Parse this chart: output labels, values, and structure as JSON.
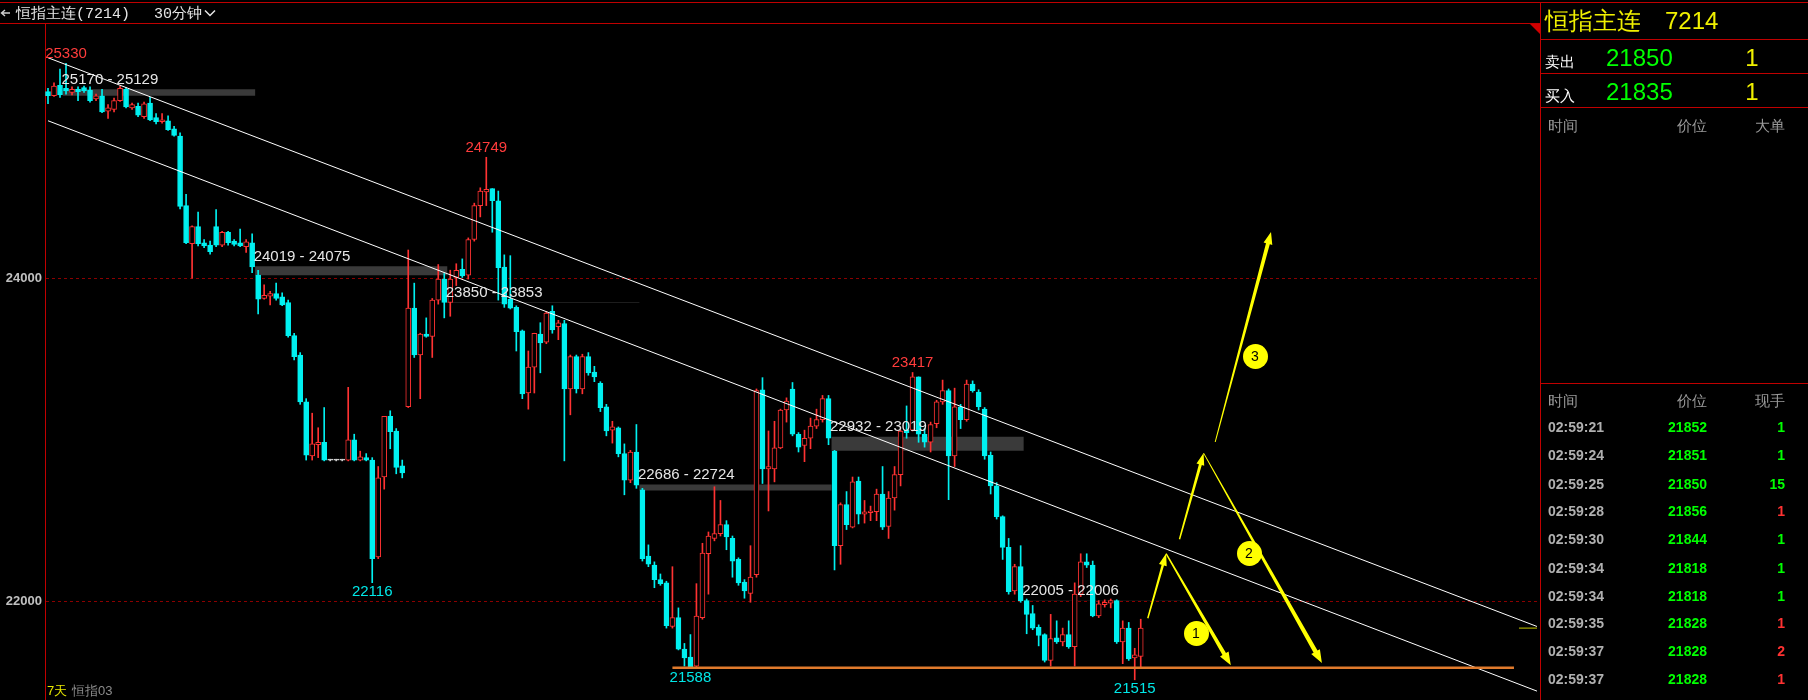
{
  "chart_data": {
    "type": "candlestick",
    "title": "恒指主连(7214)",
    "subtitle": "30分钟",
    "categories": [
      null,
      null,
      null,
      null,
      null,
      null,
      null,
      null,
      null,
      null,
      null,
      null,
      null,
      null,
      null,
      null,
      null,
      null,
      null,
      null,
      null,
      null,
      null,
      null,
      null,
      null,
      null,
      null,
      null,
      null,
      null,
      null,
      null,
      null,
      null,
      null,
      null,
      null,
      null,
      null,
      null,
      null,
      null,
      null,
      null,
      null,
      null,
      null,
      null,
      null,
      null,
      null,
      null,
      null,
      null,
      null,
      null,
      null,
      null,
      null,
      null,
      null,
      null,
      null,
      null,
      null,
      null,
      null,
      null,
      null,
      null,
      null,
      null,
      null,
      null,
      null,
      null,
      null,
      null,
      null,
      null,
      null,
      null,
      null,
      null,
      null,
      null,
      null,
      null,
      null,
      null,
      null,
      null,
      null,
      null,
      null,
      null,
      null,
      null,
      null,
      null,
      null,
      null,
      null,
      null,
      null,
      null,
      null,
      null,
      null,
      null,
      null,
      null,
      null,
      null,
      null,
      null,
      null,
      null,
      null,
      null,
      null,
      null,
      null,
      null,
      null,
      null,
      null,
      null,
      null,
      null,
      null,
      null,
      null,
      null,
      null,
      null,
      null,
      null,
      null,
      null,
      null,
      null,
      null,
      null,
      null,
      null,
      null,
      null,
      null,
      null,
      null,
      null,
      null,
      null,
      null,
      null,
      null,
      null,
      null,
      null,
      null,
      null,
      null,
      null,
      null,
      null,
      null,
      null,
      null,
      null,
      null,
      null,
      null,
      null,
      null,
      null,
      null,
      null,
      null,
      null,
      null,
      null,
      null,
      null,
      null,
      null,
      null,
      null,
      null,
      null,
      null,
      null,
      null,
      null,
      null,
      null,
      null,
      null,
      null,
      null,
      null,
      null,
      null,
      null,
      null,
      null,
      null,
      null,
      null,
      null,
      null,
      null,
      null,
      null,
      null,
      null,
      null,
      null,
      null,
      null,
      null,
      null,
      null,
      null,
      null,
      null,
      null,
      null,
      null,
      null,
      null,
      null,
      null,
      null,
      null,
      null,
      null,
      null,
      null,
      null,
      null,
      null,
      null,
      null,
      null,
      null,
      null,
      null
    ],
    "ohlc": [
      [
        25155,
        25175,
        25080,
        25130
      ],
      [
        25130,
        25210,
        25125,
        25190
      ],
      [
        25195,
        25295,
        25120,
        25135
      ],
      [
        25175,
        25330,
        25140,
        25160
      ],
      [
        25150,
        25185,
        25135,
        25170
      ],
      [
        25170,
        25185,
        25100,
        25155
      ],
      [
        25180,
        25190,
        25150,
        25160
      ],
      [
        25165,
        25185,
        25090,
        25100
      ],
      [
        25110,
        25140,
        25100,
        25130
      ],
      [
        25130,
        25170,
        25025,
        25030
      ],
      [
        25035,
        25075,
        24990,
        25055
      ],
      [
        25045,
        25115,
        25030,
        25100
      ],
      [
        25100,
        25190,
        25095,
        25175
      ],
      [
        25170,
        25180,
        25055,
        25060
      ],
      [
        25055,
        25085,
        25045,
        25075
      ],
      [
        25065,
        25085,
        25000,
        25010
      ],
      [
        25000,
        25090,
        24990,
        25080
      ],
      [
        25085,
        25120,
        24975,
        24980
      ],
      [
        24995,
        25020,
        24955,
        24970
      ],
      [
        24970,
        25020,
        24960,
        24980
      ],
      [
        24975,
        25005,
        24915,
        24920
      ],
      [
        24925,
        24940,
        24880,
        24885
      ],
      [
        24880,
        24900,
        24430,
        24445
      ],
      [
        24450,
        24520,
        24215,
        24220
      ],
      [
        24215,
        24325,
        24000,
        24320
      ],
      [
        24320,
        24410,
        24200,
        24215
      ],
      [
        24220,
        24240,
        24190,
        24200
      ],
      [
        24205,
        24230,
        24150,
        24165
      ],
      [
        24320,
        24425,
        24195,
        24205
      ],
      [
        24205,
        24290,
        24195,
        24285
      ],
      [
        24285,
        24290,
        24205,
        24220
      ],
      [
        24230,
        24240,
        24200,
        24210
      ],
      [
        24220,
        24305,
        24195,
        24200
      ],
      [
        24195,
        24240,
        24160,
        24225
      ],
      [
        24220,
        24275,
        24035,
        24070
      ],
      [
        24020,
        24050,
        23780,
        23870
      ],
      [
        23875,
        23960,
        23870,
        23895
      ],
      [
        23890,
        23920,
        23835,
        23905
      ],
      [
        23905,
        23970,
        23865,
        23875
      ],
      [
        23885,
        23910,
        23830,
        23835
      ],
      [
        23850,
        23865,
        23635,
        23645
      ],
      [
        23645,
        23660,
        23495,
        23515
      ],
      [
        23525,
        23540,
        23220,
        23235
      ],
      [
        23235,
        23255,
        22875,
        22905
      ],
      [
        22900,
        23165,
        22875,
        22975
      ],
      [
        22970,
        23075,
        22890,
        22985
      ],
      [
        22985,
        23200,
        22870,
        22875
      ],
      [
        22875,
        22880,
        22870,
        22875
      ],
      [
        22875,
        22880,
        22870,
        22875
      ],
      [
        22875,
        22880,
        22870,
        22875
      ],
      [
        22875,
        23325,
        22870,
        23000
      ],
      [
        23000,
        23035,
        22870,
        22875
      ],
      [
        22875,
        22930,
        22870,
        22895
      ],
      [
        22890,
        22915,
        22870,
        22875
      ],
      [
        22875,
        22890,
        22116,
        22265
      ],
      [
        22275,
        22835,
        22265,
        22765
      ],
      [
        22770,
        23145,
        22695,
        23145
      ],
      [
        23145,
        23180,
        22945,
        23050
      ],
      [
        23055,
        23070,
        22790,
        22830
      ],
      [
        22840,
        22875,
        22765,
        22795
      ],
      [
        23205,
        24175,
        23200,
        23815
      ],
      [
        23815,
        23970,
        23510,
        23525
      ],
      [
        23525,
        23660,
        23255,
        23655
      ],
      [
        23655,
        23755,
        23635,
        23640
      ],
      [
        23640,
        23875,
        23510,
        23865
      ],
      [
        23865,
        24085,
        23840,
        23995
      ],
      [
        23995,
        24030,
        23755,
        23850
      ],
      [
        23850,
        24050,
        23765,
        23995
      ],
      [
        24005,
        24090,
        23955,
        24050
      ],
      [
        24055,
        24120,
        24005,
        24015
      ],
      [
        24020,
        24250,
        23995,
        24240
      ],
      [
        24240,
        24465,
        24230,
        24450
      ],
      [
        24450,
        24560,
        24380,
        24540
      ],
      [
        24535,
        24749,
        24450,
        24550
      ],
      [
        24555,
        24555,
        24285,
        24480
      ],
      [
        24480,
        24540,
        23865,
        24065
      ],
      [
        24070,
        24145,
        23820,
        23840
      ],
      [
        23870,
        24140,
        23810,
        23815
      ],
      [
        23820,
        23830,
        23550,
        23670
      ],
      [
        23675,
        23680,
        23255,
        23285
      ],
      [
        23290,
        23550,
        23190,
        23450
      ],
      [
        23450,
        23660,
        23290,
        23660
      ],
      [
        23655,
        23725,
        23415,
        23600
      ],
      [
        23605,
        23795,
        23595,
        23785
      ],
      [
        23795,
        23830,
        23660,
        23680
      ],
      [
        23700,
        23740,
        23620,
        23725
      ],
      [
        23720,
        23740,
        22870,
        23315
      ],
      [
        23315,
        23525,
        23155,
        23515
      ],
      [
        23515,
        23525,
        23290,
        23315
      ],
      [
        23315,
        23530,
        23285,
        23515
      ],
      [
        23515,
        23540,
        23400,
        23415
      ],
      [
        23420,
        23455,
        23360,
        23390
      ],
      [
        23350,
        23360,
        23175,
        23200
      ],
      [
        23205,
        23220,
        23025,
        23055
      ],
      [
        23060,
        23115,
        22980,
        23080
      ],
      [
        23075,
        23080,
        22895,
        22915
      ],
      [
        22915,
        22975,
        22660,
        22750
      ],
      [
        22750,
        22935,
        22735,
        22925
      ],
      [
        22925,
        23095,
        22700,
        22720
      ],
      [
        22690,
        22700,
        22250,
        22265
      ],
      [
        22280,
        22350,
        22215,
        22230
      ],
      [
        22225,
        22245,
        22085,
        22135
      ],
      [
        22135,
        22170,
        22100,
        22110
      ],
      [
        22115,
        22125,
        21835,
        21850
      ],
      [
        21845,
        22215,
        21835,
        21900
      ],
      [
        21900,
        21960,
        21700,
        21705
      ],
      [
        21705,
        21740,
        21600,
        21650
      ],
      [
        21655,
        21795,
        21588,
        21595
      ],
      [
        21600,
        22110,
        21595,
        21910
      ],
      [
        21900,
        22360,
        21890,
        22300
      ],
      [
        22295,
        22430,
        22045,
        22405
      ],
      [
        22390,
        22710,
        22375,
        22420
      ],
      [
        22420,
        22625,
        22405,
        22475
      ],
      [
        22475,
        22500,
        22320,
        22400
      ],
      [
        22390,
        22405,
        22150,
        22250
      ],
      [
        22260,
        22270,
        22100,
        22115
      ],
      [
        22120,
        22135,
        22020,
        22065
      ],
      [
        22050,
        22345,
        21995,
        22150
      ],
      [
        22165,
        23315,
        22150,
        23305
      ],
      [
        23310,
        23385,
        22730,
        22820
      ],
      [
        22820,
        23055,
        22560,
        22835
      ],
      [
        22820,
        23115,
        22740,
        22950
      ],
      [
        22950,
        23190,
        22945,
        23185
      ],
      [
        23185,
        23260,
        23110,
        23240
      ],
      [
        23315,
        23355,
        23025,
        23035
      ],
      [
        23035,
        23045,
        22925,
        22955
      ],
      [
        22965,
        23060,
        22865,
        23010
      ],
      [
        23010,
        23135,
        22945,
        23085
      ],
      [
        23085,
        23190,
        23070,
        23125
      ],
      [
        23125,
        23275,
        23110,
        23255
      ],
      [
        23255,
        23275,
        22970,
        23010
      ],
      [
        22930,
        22935,
        22195,
        22345
      ],
      [
        22345,
        22610,
        22230,
        22600
      ],
      [
        22600,
        22680,
        22445,
        22475
      ],
      [
        22460,
        22770,
        22455,
        22740
      ],
      [
        22745,
        22770,
        22480,
        22540
      ],
      [
        22540,
        22625,
        22485,
        22555
      ],
      [
        22550,
        22590,
        22500,
        22560
      ],
      [
        22555,
        22695,
        22500,
        22665
      ],
      [
        22665,
        22835,
        22445,
        22460
      ],
      [
        22465,
        22680,
        22390,
        22640
      ],
      [
        22640,
        22835,
        22565,
        22785
      ],
      [
        22785,
        23060,
        22715,
        23055
      ],
      [
        23060,
        23210,
        23010,
        23045
      ],
      [
        23060,
        23417,
        23055,
        23390
      ],
      [
        23390,
        23390,
        22985,
        23035
      ],
      [
        23035,
        23070,
        22955,
        22985
      ],
      [
        22985,
        23110,
        22925,
        23095
      ],
      [
        23100,
        23245,
        23075,
        23235
      ],
      [
        23235,
        23370,
        23220,
        23305
      ],
      [
        23305,
        23315,
        22630,
        22900
      ],
      [
        22900,
        23320,
        22835,
        23205
      ],
      [
        23205,
        23220,
        23070,
        23125
      ],
      [
        23125,
        23370,
        23115,
        23345
      ],
      [
        23345,
        23365,
        23295,
        23305
      ],
      [
        23295,
        23310,
        23185,
        23205
      ],
      [
        23190,
        23200,
        22880,
        22900
      ],
      [
        22905,
        22925,
        22665,
        22715
      ],
      [
        22715,
        22735,
        22510,
        22525
      ],
      [
        22525,
        22530,
        22260,
        22335
      ],
      [
        22335,
        22390,
        22045,
        22060
      ],
      [
        22065,
        22230,
        22045,
        22215
      ],
      [
        22215,
        22345,
        21995,
        22005
      ],
      [
        22005,
        22015,
        21800,
        21920
      ],
      [
        21925,
        21975,
        21825,
        21835
      ],
      [
        21840,
        21855,
        21725,
        21790
      ],
      [
        21795,
        21800,
        21625,
        21635
      ],
      [
        21635,
        21920,
        21600,
        21770
      ],
      [
        21775,
        21880,
        21740,
        21750
      ],
      [
        21750,
        21835,
        21725,
        21795
      ],
      [
        21795,
        21880,
        21710,
        21720
      ],
      [
        21720,
        22115,
        21600,
        22045
      ],
      [
        22045,
        22295,
        22030,
        22245
      ],
      [
        22245,
        22295,
        22210,
        22225
      ],
      [
        22225,
        22250,
        21905,
        21910
      ],
      [
        21910,
        22005,
        21900,
        21985
      ],
      [
        21980,
        22010,
        21965,
        21995
      ],
      [
        21990,
        22015,
        21960,
        22005
      ],
      [
        22005,
        22010,
        21740,
        21750
      ],
      [
        21750,
        21880,
        21615,
        21835
      ],
      [
        21835,
        21870,
        21635,
        21645
      ],
      [
        21650,
        21710,
        21515,
        21670
      ],
      [
        21660,
        21890,
        21590,
        21835
      ],
      null,
      null,
      null,
      null,
      null,
      null,
      null,
      null,
      null,
      null,
      null,
      null,
      null,
      null,
      null,
      null,
      null,
      null,
      null,
      null,
      null,
      null,
      null,
      null,
      null,
      null,
      null,
      null,
      null,
      null,
      null,
      null,
      null,
      null,
      null,
      null,
      null,
      null,
      null,
      null,
      null,
      null,
      null,
      null,
      null,
      null,
      null,
      null,
      null,
      null,
      null,
      null,
      null,
      null,
      null,
      null,
      null,
      null,
      null,
      null,
      null,
      null,
      null,
      null,
      null,
      null
    ],
    "colors": [
      "#00f0f0",
      "#ff3232",
      "#00f0f0",
      "#00f0f0",
      "#ff3232",
      "#00f0f0",
      "#00f0f0",
      "#00f0f0",
      "#ff3232",
      "#00f0f0",
      "#ff3232",
      "#ff3232",
      "#ff3232",
      "#00f0f0",
      "#ff3232",
      "#00f0f0",
      "#ff3232",
      "#00f0f0",
      "#00f0f0",
      "#ff3232",
      "#00f0f0",
      "#00f0f0",
      "#00f0f0",
      "#00f0f0",
      "#ff3232",
      "#00f0f0",
      "#00f0f0",
      "#00f0f0",
      "#00f0f0",
      "#ff3232",
      "#00f0f0",
      "#00f0f0",
      "#00f0f0",
      "#ff3232",
      "#00f0f0",
      "#00f0f0",
      "#ff3232",
      "#ff3232",
      "#00f0f0",
      "#00f0f0",
      "#00f0f0",
      "#00f0f0",
      "#00f0f0",
      "#00f0f0",
      "#ff3232",
      "#ff3232",
      "#00f0f0",
      "#d0d0d0",
      "#d0d0d0",
      "#d0d0d0",
      "#ff3232",
      "#00f0f0",
      "#ff3232",
      "#00f0f0",
      "#00f0f0",
      "#ff3232",
      "#ff3232",
      "#00f0f0",
      "#00f0f0",
      "#00f0f0",
      "#ff3232",
      "#00f0f0",
      "#ff3232",
      "#00f0f0",
      "#ff3232",
      "#ff3232",
      "#00f0f0",
      "#ff3232",
      "#ff3232",
      "#00f0f0",
      "#ff3232",
      "#ff3232",
      "#ff3232",
      "#ff3232",
      "#00f0f0",
      "#00f0f0",
      "#00f0f0",
      "#00f0f0",
      "#00f0f0",
      "#00f0f0",
      "#ff3232",
      "#ff3232",
      "#00f0f0",
      "#ff3232",
      "#00f0f0",
      "#ff3232",
      "#00f0f0",
      "#ff3232",
      "#00f0f0",
      "#ff3232",
      "#00f0f0",
      "#00f0f0",
      "#00f0f0",
      "#00f0f0",
      "#ff3232",
      "#00f0f0",
      "#00f0f0",
      "#ff3232",
      "#00f0f0",
      "#00f0f0",
      "#00f0f0",
      "#00f0f0",
      "#00f0f0",
      "#00f0f0",
      "#ff3232",
      "#00f0f0",
      "#00f0f0",
      "#00f0f0",
      "#ff3232",
      "#ff3232",
      "#ff3232",
      "#ff3232",
      "#ff3232",
      "#00f0f0",
      "#00f0f0",
      "#00f0f0",
      "#00f0f0",
      "#ff3232",
      "#ff3232",
      "#00f0f0",
      "#ff3232",
      "#ff3232",
      "#ff3232",
      "#ff3232",
      "#00f0f0",
      "#00f0f0",
      "#ff3232",
      "#ff3232",
      "#ff3232",
      "#ff3232",
      "#00f0f0",
      "#00f0f0",
      "#ff3232",
      "#00f0f0",
      "#ff3232",
      "#00f0f0",
      "#ff3232",
      "#ff3232",
      "#ff3232",
      "#00f0f0",
      "#ff3232",
      "#ff3232",
      "#ff3232",
      "#00f0f0",
      "#ff3232",
      "#00f0f0",
      "#00f0f0",
      "#ff3232",
      "#ff3232",
      "#ff3232",
      "#00f0f0",
      "#ff3232",
      "#00f0f0",
      "#ff3232",
      "#00f0f0",
      "#00f0f0",
      "#00f0f0",
      "#00f0f0",
      "#00f0f0",
      "#00f0f0",
      "#00f0f0",
      "#ff3232",
      "#00f0f0",
      "#00f0f0",
      "#00f0f0",
      "#00f0f0",
      "#00f0f0",
      "#ff3232",
      "#00f0f0",
      "#ff3232",
      "#00f0f0",
      "#ff3232",
      "#ff3232",
      "#00f0f0",
      "#00f0f0",
      "#ff3232",
      "#ff3232",
      "#ff3232",
      "#00f0f0",
      "#ff3232",
      "#00f0f0",
      "#ff3232",
      "#ff3232",
      null,
      null,
      null,
      null,
      null,
      null,
      null,
      null,
      null,
      null,
      null,
      null,
      null,
      null,
      null,
      null,
      null,
      null,
      null,
      null,
      null,
      null,
      null,
      null,
      null,
      null,
      null,
      null,
      null,
      null,
      null,
      null,
      null,
      null,
      null,
      null,
      null,
      null,
      null,
      null,
      null,
      null,
      null,
      null,
      null,
      null,
      null,
      null,
      null,
      null,
      null,
      null,
      null,
      null,
      null,
      null,
      null,
      null,
      null,
      null,
      null,
      null,
      null,
      null,
      null,
      null
    ],
    "series": [
      {
        "type": "line",
        "color": "#ffffff",
        "values": [
          25365,
          null,
          null,
          null,
          null,
          null,
          null,
          null,
          null,
          null,
          null,
          null,
          null,
          null,
          null,
          null,
          null,
          null,
          null,
          null,
          null,
          null,
          null,
          null,
          null,
          null,
          null,
          null,
          null,
          null,
          null,
          null,
          null,
          null,
          null,
          null,
          null,
          null,
          null,
          null,
          null,
          null,
          null,
          null,
          null,
          null,
          null,
          null,
          null,
          null,
          null,
          null,
          null,
          null,
          null,
          null,
          null,
          null,
          null,
          null,
          null,
          null,
          null,
          null,
          null,
          null,
          null,
          null,
          null,
          null,
          null,
          null,
          null,
          null,
          null,
          null,
          null,
          null,
          null,
          null,
          null,
          null,
          null,
          null,
          null,
          null,
          null,
          null,
          null,
          null,
          null,
          null,
          null,
          null,
          null,
          null,
          null,
          null,
          null,
          null,
          null,
          null,
          null,
          null,
          null,
          null,
          null,
          null,
          null,
          null,
          null,
          null,
          null,
          null,
          null,
          null,
          null,
          null,
          null,
          null,
          null,
          null,
          null,
          null,
          null,
          null,
          null,
          null,
          null,
          null,
          null,
          null,
          null,
          null,
          null,
          null,
          null,
          null,
          null,
          null,
          null,
          null,
          null,
          null,
          null,
          null,
          null,
          null,
          null,
          null,
          null,
          null,
          null,
          null,
          null,
          null,
          null,
          null,
          null,
          null,
          null,
          null,
          null,
          null,
          null,
          null,
          null,
          null,
          null,
          null,
          null,
          null,
          null,
          null,
          null,
          null,
          null,
          null,
          null,
          null,
          null,
          null,
          null,
          null,
          null,
          null,
          null,
          null,
          null,
          null,
          null,
          null,
          null,
          null,
          null,
          null,
          null,
          null,
          null,
          null,
          null,
          null,
          null,
          null,
          null,
          null,
          null,
          null,
          null,
          null,
          null,
          null,
          null,
          null,
          null,
          null,
          null,
          null,
          null,
          null,
          null,
          null,
          null,
          null,
          null,
          null,
          null,
          null,
          null,
          null,
          null,
          null,
          null,
          null,
          null,
          null,
          null,
          null,
          null,
          null,
          null,
          null,
          null,
          null,
          null,
          null,
          null,
          null,
          21845
        ]
      },
      {
        "type": "line",
        "color": "#ffffff",
        "values": [
          24975,
          null,
          null,
          null,
          null,
          null,
          null,
          null,
          null,
          null,
          null,
          null,
          null,
          null,
          null,
          null,
          null,
          null,
          null,
          null,
          null,
          null,
          null,
          null,
          null,
          null,
          null,
          null,
          null,
          null,
          null,
          null,
          null,
          null,
          null,
          null,
          null,
          null,
          null,
          null,
          null,
          null,
          null,
          null,
          null,
          null,
          null,
          null,
          null,
          null,
          null,
          null,
          null,
          null,
          null,
          null,
          null,
          null,
          null,
          null,
          null,
          null,
          null,
          null,
          null,
          null,
          null,
          null,
          null,
          null,
          null,
          null,
          null,
          null,
          null,
          null,
          null,
          null,
          null,
          null,
          null,
          null,
          null,
          null,
          null,
          null,
          null,
          null,
          null,
          null,
          null,
          null,
          null,
          null,
          null,
          null,
          null,
          null,
          null,
          null,
          null,
          null,
          null,
          null,
          null,
          null,
          null,
          null,
          null,
          null,
          null,
          null,
          null,
          null,
          null,
          null,
          null,
          null,
          null,
          null,
          null,
          null,
          null,
          null,
          null,
          null,
          null,
          null,
          null,
          null,
          null,
          null,
          null,
          null,
          null,
          null,
          null,
          null,
          null,
          null,
          null,
          null,
          null,
          null,
          null,
          null,
          null,
          null,
          null,
          null,
          null,
          null,
          null,
          null,
          null,
          null,
          null,
          null,
          null,
          null,
          null,
          null,
          null,
          null,
          null,
          null,
          null,
          null,
          null,
          null,
          null,
          null,
          null,
          null,
          null,
          null,
          null,
          null,
          null,
          null,
          null,
          null,
          null,
          null,
          null,
          null,
          null,
          null,
          null,
          null,
          null,
          null,
          null,
          null,
          null,
          null,
          null,
          null,
          null,
          null,
          null,
          null,
          null,
          null,
          null,
          null,
          null,
          null,
          null,
          null,
          null,
          null,
          null,
          null,
          null,
          null,
          null,
          null,
          null,
          null,
          null,
          null,
          null,
          null,
          null,
          null,
          null,
          null,
          null,
          null,
          null,
          null,
          null,
          null,
          null,
          null,
          null,
          null,
          null,
          null,
          null,
          null,
          null,
          null,
          null,
          null,
          null,
          null,
          21445
        ]
      },
      {
        "type": "line",
        "color": "#c8c800",
        "values": [
          null,
          null,
          null,
          null,
          null,
          null,
          null,
          null,
          null,
          null,
          null,
          null,
          null,
          null,
          null,
          null,
          null,
          null,
          null,
          null,
          null,
          null,
          null,
          null,
          null,
          null,
          null,
          null,
          null,
          null,
          null,
          null,
          null,
          null,
          null,
          null,
          null,
          null,
          null,
          null,
          null,
          null,
          null,
          null,
          null,
          null,
          null,
          null,
          null,
          null,
          null,
          null,
          null,
          null,
          null,
          null,
          null,
          null,
          null,
          null,
          null,
          null,
          null,
          null,
          null,
          null,
          null,
          null,
          null,
          null,
          null,
          null,
          null,
          null,
          null,
          null,
          null,
          null,
          null,
          null,
          null,
          null,
          null,
          null,
          null,
          null,
          null,
          null,
          null,
          null,
          null,
          null,
          null,
          null,
          null,
          null,
          null,
          null,
          null,
          null,
          null,
          null,
          null,
          null,
          null,
          null,
          null,
          null,
          null,
          null,
          null,
          null,
          null,
          null,
          null,
          null,
          null,
          null,
          null,
          null,
          null,
          null,
          null,
          null,
          null,
          null,
          null,
          null,
          null,
          null,
          null,
          null,
          null,
          null,
          null,
          null,
          null,
          null,
          null,
          null,
          null,
          null,
          null,
          null,
          null,
          null,
          null,
          null,
          null,
          null,
          null,
          null,
          null,
          null,
          null,
          null,
          null,
          null,
          null,
          null,
          null,
          null,
          null,
          null,
          null,
          null,
          null,
          null,
          null,
          null,
          null,
          null,
          null,
          null,
          null,
          null,
          null,
          null,
          null,
          null,
          null,
          null,
          null,
          null,
          null,
          null,
          null,
          null,
          null,
          null,
          null,
          null,
          null,
          null,
          null,
          null,
          null,
          null,
          null,
          null,
          null,
          null,
          null,
          null,
          null,
          null,
          null,
          null,
          null,
          null,
          null,
          null,
          null,
          null,
          null,
          null,
          null,
          null,
          null,
          null,
          null,
          null,
          null,
          null,
          null,
          null,
          null,
          null,
          null,
          null,
          null,
          null,
          null,
          null,
          null,
          null,
          null,
          null,
          null,
          null,
          null,
          null,
          null,
          null,
          null,
          21835,
          null,
          null,
          21835
        ]
      }
    ],
    "ylim": [
      21390,
      25580
    ],
    "yticks": [
      22000,
      24000
    ],
    "grid": "y",
    "tick_labels": "y",
    "bands": [
      {
        "axis": "y",
        "from": 25129,
        "to": 25170,
        "label": "25170 - 25129",
        "color": "#3a3a3a"
      },
      {
        "axis": "y",
        "from": 24019,
        "to": 24075,
        "label": "24019 - 24075",
        "color": "#3a3a3a"
      },
      {
        "axis": "y",
        "from": 23850,
        "to": 23853,
        "label": "23850 - 23853",
        "color": "#3a3a3a"
      },
      {
        "axis": "y",
        "from": 22686,
        "to": 22724,
        "label": "22686 - 22724",
        "color": "#3a3a3a"
      },
      {
        "axis": "y",
        "from": 22932,
        "to": 23019,
        "label": "22932 - 23019",
        "color": "#3a3a3a"
      },
      {
        "axis": "y",
        "from": 22005,
        "to": 22006,
        "label": "22005 - 22006",
        "color": "#3a3a3a"
      }
    ],
    "ref_lines": [
      {
        "axis": "y",
        "value": 21590,
        "color": "#e07a2c"
      }
    ],
    "annotations": [
      {
        "text": "25330",
        "y": 25330
      },
      {
        "text": "24749",
        "y": 24749
      },
      {
        "text": "23417",
        "y": 23417
      },
      {
        "text": "22116",
        "y": 22116
      },
      {
        "text": "21588",
        "y": 21588
      },
      {
        "text": "21515",
        "y": 21515
      },
      "1",
      "2",
      "3",
      "7天",
      "恒指03",
      "恒指主连",
      "7214",
      "卖出",
      "21850",
      "1",
      "买入",
      "21835",
      "1",
      "时间",
      "价位",
      "大单",
      "时间",
      "价位",
      "现手",
      "02:59:21",
      "21852",
      "1",
      "02:59:24",
      "21851",
      "1",
      "02:59:25",
      "21850",
      "15",
      "02:59:28",
      "21856",
      "1",
      "02:59:30",
      "21844",
      "1",
      "02:59:34",
      "21818",
      "1",
      "02:59:34",
      "21818",
      "1",
      "02:59:35",
      "21828",
      "1",
      "02:59:37",
      "21828",
      "2",
      "02:59:37",
      "21828",
      "1"
    ]
  }
}
